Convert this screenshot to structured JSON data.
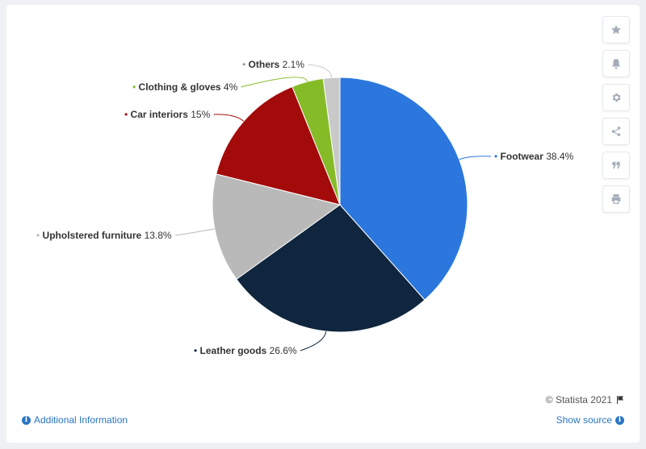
{
  "chart_data": {
    "type": "pie",
    "slices": [
      {
        "name": "Footwear",
        "value": 38.4,
        "label": "38.4%",
        "color": "#2b77dd"
      },
      {
        "name": "Leather goods",
        "value": 26.6,
        "label": "26.6%",
        "color": "#10263e"
      },
      {
        "name": "Upholstered furniture",
        "value": 13.8,
        "label": "13.8%",
        "color": "#b9b9b9"
      },
      {
        "name": "Car interiors",
        "value": 15,
        "label": "15%",
        "color": "#a30b0b"
      },
      {
        "name": "Clothing & gloves",
        "value": 4,
        "label": "4%",
        "color": "#86bb28"
      },
      {
        "name": "Others",
        "value": 2.1,
        "label": "2.1%",
        "color": "#c9c9c9"
      }
    ],
    "start_angle": "top, clockwise"
  },
  "toolbar": {
    "items": [
      {
        "name": "favorite-button",
        "icon": "star-icon"
      },
      {
        "name": "notification-button",
        "icon": "bell-icon"
      },
      {
        "name": "settings-button",
        "icon": "gear-icon"
      },
      {
        "name": "share-button",
        "icon": "share-icon"
      },
      {
        "name": "cite-button",
        "icon": "quote-icon"
      },
      {
        "name": "print-button",
        "icon": "print-icon"
      }
    ]
  },
  "footer": {
    "credit": "© Statista 2021",
    "additional_info": "Additional Information",
    "show_source": "Show source"
  }
}
